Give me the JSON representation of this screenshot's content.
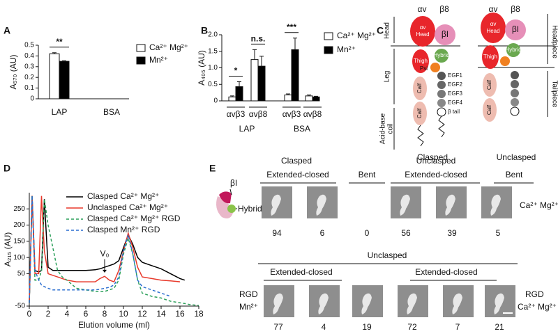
{
  "chart_data": [
    {
      "panel": "A",
      "type": "bar",
      "ylabel": "A₅₇₀ (AU)",
      "categories": [
        "LAP",
        "BSA"
      ],
      "series": [
        {
          "name": "Ca²⁺ Mg²⁺",
          "color": "#ffffff",
          "values": [
            0.42,
            null
          ],
          "errors": [
            0.01,
            null
          ]
        },
        {
          "name": "Mn²⁺",
          "color": "#000000",
          "values": [
            0.35,
            null
          ],
          "errors": [
            0.005,
            null
          ]
        }
      ],
      "ylim": [
        0,
        0.5
      ],
      "yticks": [
        0,
        0.1,
        0.2,
        0.3,
        0.4,
        0.5
      ],
      "significance": [
        "**"
      ]
    },
    {
      "panel": "B",
      "type": "bar",
      "ylabel": "A₄₀₅ (AU)",
      "categories": [
        "αvβ3",
        "αvβ8",
        "αvβ3",
        "αvβ8"
      ],
      "groups": [
        "LAP",
        "BSA"
      ],
      "series": [
        {
          "name": "Ca²⁺ Mg²⁺",
          "color": "#ffffff",
          "values": [
            0.12,
            1.25,
            0.18,
            0.15
          ],
          "errors": [
            0.03,
            0.3,
            0.03,
            0.03
          ]
        },
        {
          "name": "Mn²⁺",
          "color": "#000000",
          "values": [
            0.43,
            1.05,
            1.55,
            0.12
          ],
          "errors": [
            0.15,
            0.3,
            0.35,
            0.02
          ]
        }
      ],
      "ylim": [
        0,
        2
      ],
      "yticks": [
        0,
        0.5,
        {
          "value": 1,
          "label": "1.0"
        },
        1.5,
        {
          "value": 2,
          "label": "2.0"
        }
      ],
      "significance": [
        "*",
        "n.s.",
        "***"
      ]
    },
    {
      "panel": "D",
      "type": "line",
      "ylabel": "A₂₁₅ (AU)",
      "xlabel": "Elution volume (ml)",
      "x": [
        0,
        0.3,
        0.6,
        1,
        1.3,
        1.6,
        2,
        2.5,
        3,
        3.5,
        4,
        5,
        6,
        7,
        7.5,
        8,
        8.5,
        9,
        9.5,
        10,
        10.5,
        11,
        11.5,
        12,
        13,
        14,
        15,
        16,
        16.5,
        17,
        18
      ],
      "series": [
        {
          "name": "Clasped Ca²⁺ Mg²⁺",
          "color": "#000000",
          "dashed": false,
          "values": [
            -40,
            290,
            60,
            55,
            60,
            280,
            70,
            60,
            60,
            60,
            60,
            60,
            60,
            62,
            65,
            70,
            75,
            80,
            90,
            130,
            170,
            140,
            100,
            85,
            75,
            65,
            50,
            35,
            30,
            null,
            null
          ]
        },
        {
          "name": "Unclasped Ca²⁺ Mg²⁺",
          "color": "#e8392b",
          "dashed": false,
          "values": [
            -40,
            290,
            50,
            50,
            290,
            120,
            50,
            45,
            40,
            35,
            30,
            25,
            25,
            25,
            35,
            42,
            30,
            25,
            60,
            120,
            175,
            130,
            70,
            40,
            35,
            30,
            28,
            25,
            null,
            null,
            null
          ]
        },
        {
          "name": "Clasped Ca²⁺ Mg²⁺ RGD",
          "color": "#2ca05a",
          "dashed": true,
          "values": [
            -40,
            290,
            30,
            30,
            60,
            280,
            200,
            130,
            60,
            40,
            30,
            5,
            0,
            -5,
            -5,
            -5,
            0,
            5,
            30,
            110,
            160,
            110,
            30,
            -10,
            -20,
            -25,
            -35,
            -40,
            -42,
            -45,
            -48
          ]
        },
        {
          "name": "Clasped Mn²⁺ RGD",
          "color": "#2c6fd0",
          "dashed": true,
          "values": [
            -40,
            290,
            60,
            30,
            15,
            10,
            5,
            0,
            0,
            0,
            0,
            0,
            0,
            0,
            2,
            5,
            8,
            15,
            40,
            120,
            170,
            110,
            30,
            10,
            0,
            -10,
            -20,
            null,
            null,
            null,
            null
          ]
        }
      ],
      "xlim": [
        0,
        18
      ],
      "xticks": [
        0,
        2,
        4,
        6,
        8,
        10,
        12,
        14,
        16,
        18
      ],
      "ylim": [
        -50,
        300
      ],
      "yticks": [
        -50,
        50,
        100,
        150,
        200,
        250
      ],
      "annotations": [
        {
          "text": "V₀",
          "x": 8
        }
      ]
    }
  ],
  "panel_c": {
    "label": "C",
    "chains": [
      "αv",
      "β8"
    ],
    "left_labels": [
      "Head",
      "Leg",
      "Acid-base",
      "coil"
    ],
    "right_labels": [
      "Headpiece",
      "Tailpiece"
    ],
    "states": [
      "Clasped",
      "Unclasped"
    ],
    "domains": [
      "αv",
      "Head",
      "βI",
      "Hybrid",
      "Psi",
      "Thigh",
      "Calf",
      "EGF1",
      "EGF2",
      "EGF3",
      "EGF4",
      "β tail"
    ]
  },
  "panel_e": {
    "label": "E",
    "legend": [
      "βI",
      "Hybrid"
    ],
    "row1": {
      "groups": [
        {
          "title": "Clasped",
          "classes": [
            {
              "name": "Extended-closed",
              "counts": [
                94,
                6
              ]
            },
            {
              "name": "Bent",
              "counts": [
                0
              ]
            }
          ]
        },
        {
          "title": "Unclasped",
          "classes": [
            {
              "name": "Extended-closed",
              "counts": [
                56,
                39
              ]
            },
            {
              "name": "Bent",
              "counts": [
                5
              ]
            }
          ]
        }
      ],
      "condition": "Ca²⁺ Mg²⁺"
    },
    "row2": {
      "title": "Unclasped",
      "sets": [
        {
          "class": "Extended-closed",
          "counts": [
            77,
            4,
            19
          ],
          "condition": [
            "RGD",
            "Mn²⁺"
          ]
        },
        {
          "class": "Extended-closed",
          "counts": [
            72,
            7,
            21
          ],
          "condition": [
            "RGD",
            "Ca²⁺ Mg²⁺"
          ]
        }
      ]
    }
  }
}
